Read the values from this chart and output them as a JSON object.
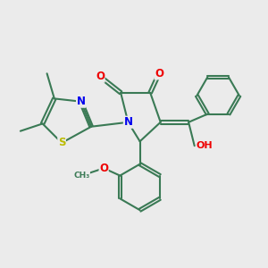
{
  "background_color": "#ebebeb",
  "bond_color": "#3a7a55",
  "bond_width": 1.5,
  "atom_colors": {
    "N": "#0000ee",
    "O": "#ee0000",
    "S": "#bbbb00",
    "C": "#3a7a55",
    "H": "#3a7a55"
  },
  "font_size_atom": 8.5,
  "figsize": [
    3.0,
    3.0
  ],
  "dpi": 100
}
